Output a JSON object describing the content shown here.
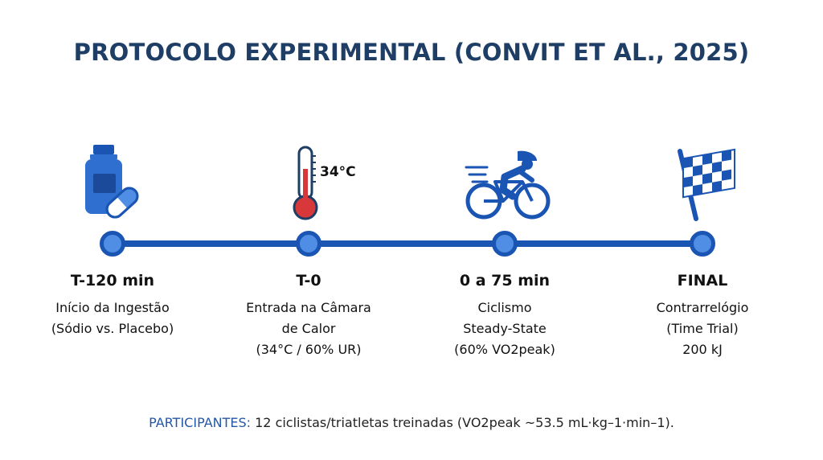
{
  "title": "PROTOCOLO EXPERIMENTAL (CONVIT ET AL., 2025)",
  "thermometer_label": "34°C",
  "steps": [
    {
      "label": "T-120 min",
      "desc": [
        "Início da Ingestão",
        "(Sódio vs. Placebo)"
      ],
      "icon": "supplement-bottle-pill-icon"
    },
    {
      "label": "T-0",
      "desc": [
        "Entrada na Câmara",
        "de Calor",
        "(34°C / 60% UR)"
      ],
      "icon": "thermometer-icon"
    },
    {
      "label": "0 a 75 min",
      "desc": [
        "Ciclismo",
        "Steady-State",
        "(60% VO2peak)"
      ],
      "icon": "cyclist-icon"
    },
    {
      "label": "FINAL",
      "desc": [
        "Contrarrelógio",
        "(Time Trial)",
        "200 kJ"
      ],
      "icon": "checkered-flag-icon"
    }
  ],
  "footer": {
    "prefix": "PARTICIPANTES:",
    "text": " 12 ciclistas/triatletas treinadas (VO2peak ~53.5 mL·kg–1·min–1)."
  },
  "colors": {
    "title": "#1f3e66",
    "accent": "#1b55b4",
    "dot": "#4f8ee4",
    "thermo_red": "#d9383a"
  }
}
